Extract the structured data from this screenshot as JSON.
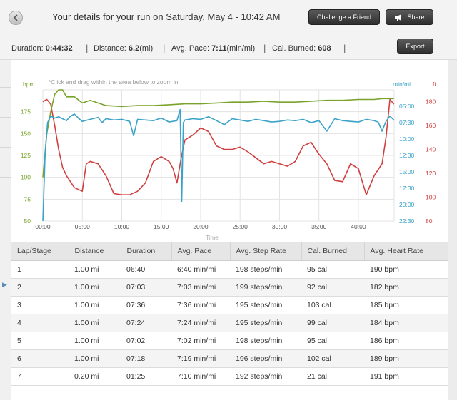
{
  "header": {
    "title": "Your details for your run on Saturday, May 4 - 10:42 AM",
    "challenge_label": "Challenge a Friend",
    "share_label": "Share",
    "export_label": "Export",
    "back_icon": "chevron-left-icon",
    "share_icon": "megaphone-icon"
  },
  "stats": {
    "duration_label": "Duration:",
    "duration_value": "0:44:32",
    "distance_label": "Distance:",
    "distance_value": "6.2",
    "distance_unit": "(mi)",
    "pace_label": "Avg. Pace:",
    "pace_value": "7:11",
    "pace_unit": "(min/mi)",
    "cal_label": "Cal. Burned:",
    "cal_value": "608",
    "separator": "|"
  },
  "chart_data": {
    "type": "line",
    "hint": "*Click and drag within the area below to zoom in.",
    "x_ticks": [
      "00:00",
      "05:00",
      "10:00",
      "15:00",
      "20:00",
      "25:00",
      "30:00",
      "35:00",
      "40:00"
    ],
    "x_range_minutes": [
      0,
      44.53
    ],
    "xlabel": "Time",
    "axes": {
      "heart_rate": {
        "unit": "bpm",
        "ticks": [
          50,
          75,
          100,
          125,
          150,
          175
        ],
        "range": [
          50,
          200
        ],
        "color": "#7aa32b"
      },
      "pace": {
        "unit": "min/mi",
        "ticks": [
          "05:00",
          "07:30",
          "10:00",
          "12:30",
          "15:00",
          "17:30",
          "20:00",
          "22:30"
        ],
        "range_minutes": [
          2.5,
          22.5
        ],
        "inverted": true,
        "color": "#3ba3c8"
      },
      "elevation": {
        "unit": "ft",
        "ticks": [
          80,
          100,
          120,
          140,
          160,
          180
        ],
        "range": [
          80,
          190
        ],
        "color": "#d14040"
      }
    },
    "grid": true,
    "series": [
      {
        "key": "heart_rate",
        "axis": "heart_rate",
        "color": "#7aa32b",
        "x": [
          0,
          0.5,
          1,
          1.5,
          2,
          2.5,
          3,
          4,
          5,
          6,
          7,
          8,
          10,
          12,
          14,
          16,
          18,
          20,
          22,
          24,
          26,
          28,
          30,
          32,
          34,
          36,
          38,
          40,
          42,
          43,
          44,
          44.5
        ],
        "values": [
          100,
          150,
          175,
          195,
          200,
          200,
          192,
          192,
          185,
          188,
          185,
          182,
          181,
          182,
          182,
          183,
          184,
          184,
          185,
          186,
          186,
          187,
          186,
          186,
          187,
          188,
          188,
          189,
          189,
          190,
          190,
          190
        ]
      },
      {
        "key": "pace",
        "axis": "pace",
        "color": "#3ba3c8",
        "x": [
          0,
          0.3,
          0.6,
          1,
          1.5,
          2,
          2.5,
          3,
          3.5,
          4,
          4.5,
          5,
          6,
          7,
          7.5,
          8,
          9,
          10,
          11,
          11.5,
          12,
          13,
          14,
          15,
          16,
          17,
          17.4,
          17.6,
          17.8,
          18,
          19,
          20,
          21,
          22,
          23,
          24,
          25,
          26,
          27,
          28,
          29,
          30,
          31,
          32,
          33,
          34,
          35,
          36,
          37,
          38,
          39,
          40,
          41,
          42,
          42.5,
          43,
          43.5,
          44,
          44.5
        ],
        "values": [
          22.5,
          12,
          7.5,
          6.5,
          6.8,
          6.6,
          6.9,
          7.2,
          6.5,
          6.2,
          6.8,
          7.3,
          7.0,
          6.7,
          7.5,
          6.9,
          7.1,
          7.0,
          7.3,
          9.5,
          7.0,
          7.1,
          7.2,
          6.8,
          7.4,
          7.2,
          5.5,
          19.5,
          7.5,
          7.1,
          6.9,
          7.0,
          6.6,
          7.2,
          7.8,
          6.9,
          7.1,
          7.3,
          7.0,
          7.2,
          7.4,
          7.3,
          7.1,
          7.2,
          7.0,
          7.5,
          7.2,
          8.8,
          6.9,
          7.2,
          7.3,
          7.4,
          7.0,
          7.2,
          7.4,
          8.8,
          7.3,
          6.5,
          7.1
        ]
      },
      {
        "key": "elevation",
        "axis": "elevation",
        "color": "#d14040",
        "x": [
          0,
          0.5,
          1,
          1.5,
          2,
          2.5,
          3,
          4,
          5,
          5.5,
          6,
          7,
          8,
          9,
          10,
          11,
          12,
          13,
          14,
          15,
          16,
          16.5,
          17,
          17.5,
          18,
          19,
          20,
          21,
          22,
          23,
          24,
          25,
          26,
          27,
          28,
          29,
          30,
          31,
          32,
          33,
          34,
          35,
          36,
          37,
          38,
          39,
          40,
          41,
          42,
          43,
          43.5,
          44,
          44.5
        ],
        "values": [
          180,
          182,
          178,
          160,
          140,
          125,
          118,
          108,
          105,
          128,
          130,
          128,
          118,
          103,
          102,
          102,
          105,
          112,
          130,
          134,
          130,
          124,
          112,
          132,
          148,
          152,
          158,
          155,
          143,
          140,
          140,
          142,
          138,
          133,
          128,
          130,
          128,
          126,
          130,
          143,
          146,
          136,
          128,
          114,
          113,
          128,
          124,
          102,
          118,
          128,
          150,
          182,
          178
        ]
      }
    ]
  },
  "laps": {
    "headers": [
      "Lap/Stage",
      "Distance",
      "Duration",
      "Avg. Pace",
      "Avg. Step Rate",
      "Cal. Burned",
      "Avg. Heart Rate"
    ],
    "rows": [
      [
        "1",
        "1.00 mi",
        "06:40",
        "6:40 min/mi",
        "198 steps/min",
        "95 cal",
        "190 bpm"
      ],
      [
        "2",
        "1.00 mi",
        "07:03",
        "7:03 min/mi",
        "199 steps/min",
        "92 cal",
        "182 bpm"
      ],
      [
        "3",
        "1.00 mi",
        "07:36",
        "7:36 min/mi",
        "195 steps/min",
        "103 cal",
        "185 bpm"
      ],
      [
        "4",
        "1.00 mi",
        "07:24",
        "7:24 min/mi",
        "195 steps/min",
        "99 cal",
        "184 bpm"
      ],
      [
        "5",
        "1.00 mi",
        "07:02",
        "7:02 min/mi",
        "198 steps/min",
        "95 cal",
        "186 bpm"
      ],
      [
        "6",
        "1.00 mi",
        "07:18",
        "7:19 min/mi",
        "196 steps/min",
        "102 cal",
        "189 bpm"
      ],
      [
        "7",
        "0.20 mi",
        "01:25",
        "7:10 min/mi",
        "192 steps/min",
        "21 cal",
        "191 bpm"
      ]
    ]
  }
}
